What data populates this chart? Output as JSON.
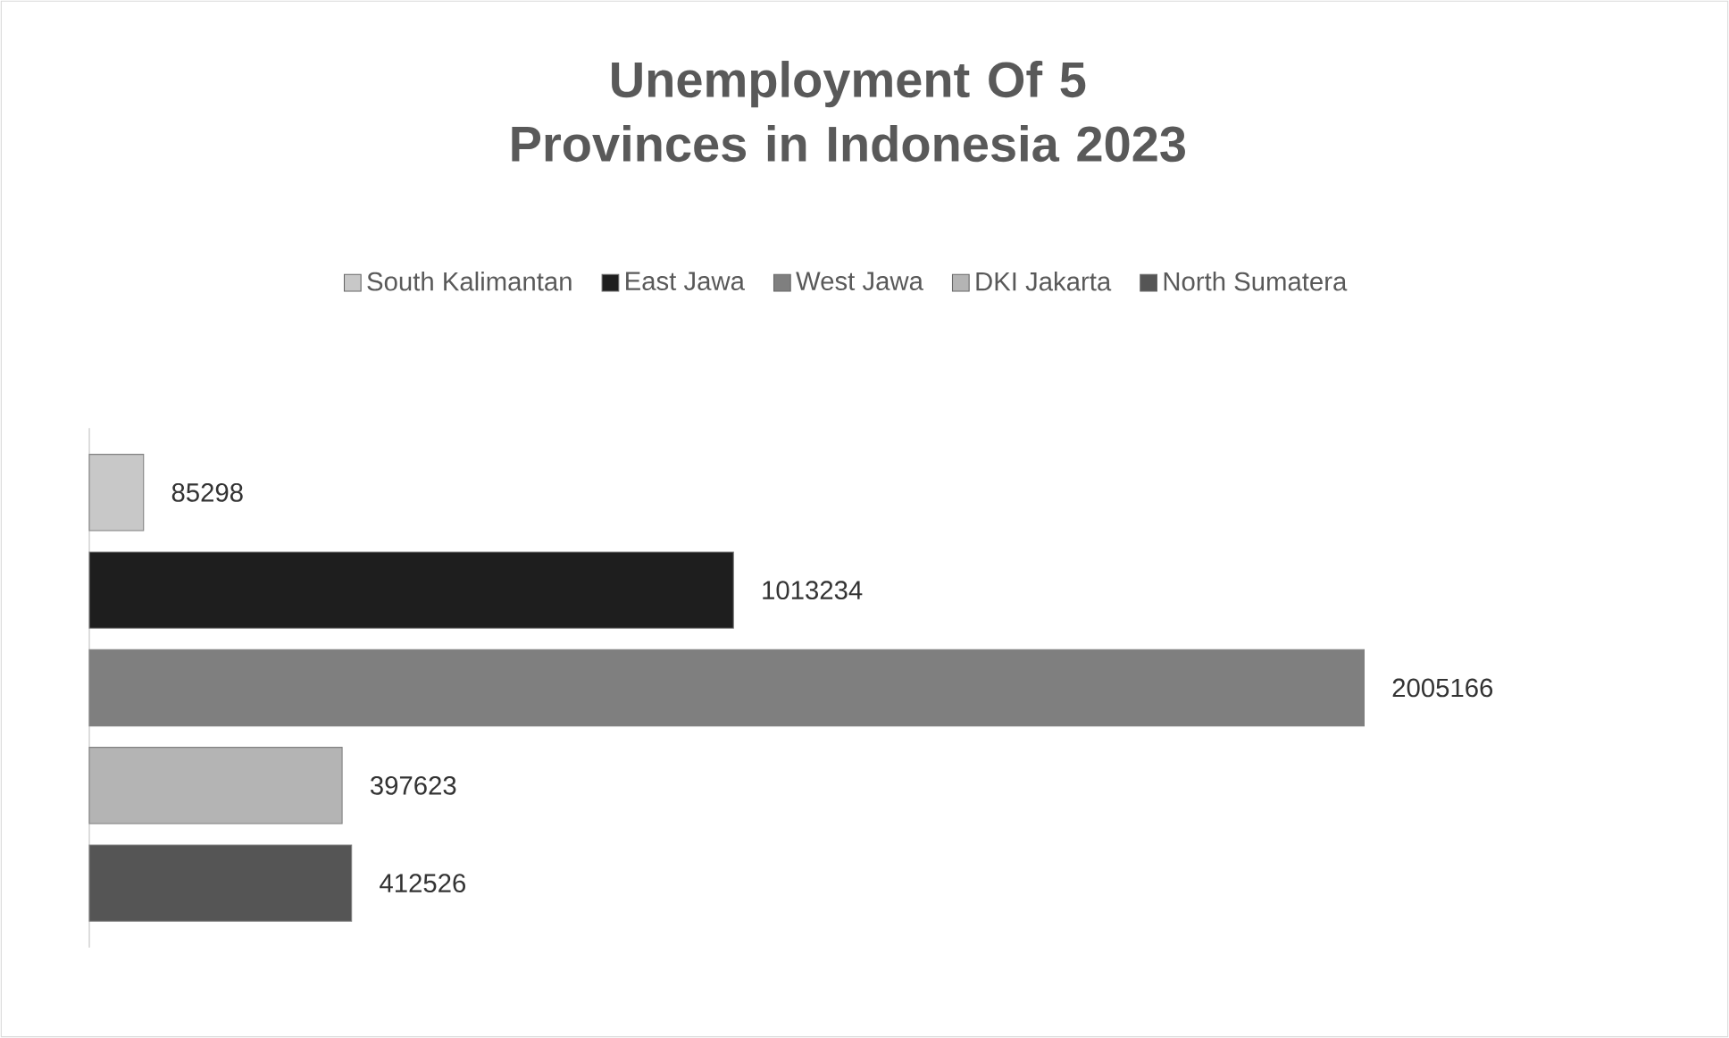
{
  "chart_data": {
    "type": "bar",
    "orientation": "horizontal",
    "title": "Unemployment Of 5 Provinces in Indonesia 2023",
    "categories": [
      null
    ],
    "series": [
      {
        "name": "South Kalimantan",
        "color": "#c8c8c8",
        "values": [
          85298
        ]
      },
      {
        "name": "East Jawa",
        "color": "#1e1e1e",
        "values": [
          1013234
        ]
      },
      {
        "name": "West Jawa",
        "color": "#7f7f7f",
        "values": [
          2005166
        ]
      },
      {
        "name": "DKI Jakarta",
        "color": "#b4b4b4",
        "values": [
          397623
        ]
      },
      {
        "name": "North Sumatera",
        "color": "#555555",
        "values": [
          412526
        ]
      }
    ],
    "data_labels": true,
    "legend": "top"
  }
}
